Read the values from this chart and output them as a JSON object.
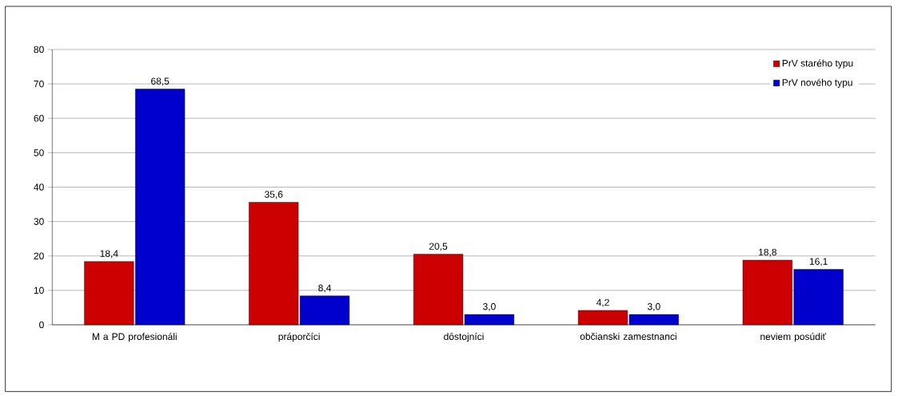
{
  "chart_data": {
    "type": "bar",
    "categories": [
      "M a PD profesionáli",
      "práporčíci",
      "dôstojníci",
      "občianski zamestnanci",
      "neviem posúdiť"
    ],
    "series": [
      {
        "name": "PrV starého typu",
        "color": "#cc0000",
        "values": [
          18.4,
          35.6,
          20.5,
          4.2,
          18.8
        ],
        "value_labels": [
          "18,4",
          "35,6",
          "20,5",
          "4,2",
          "18,8"
        ]
      },
      {
        "name": "PrV nového typu",
        "color": "#0000cc",
        "values": [
          68.5,
          8.4,
          3.0,
          3.0,
          16.1
        ],
        "value_labels": [
          "68,5",
          "8,4",
          "3,0",
          "3,0",
          "16,1"
        ]
      }
    ],
    "ylim": [
      0,
      80
    ],
    "yticks": [
      0,
      10,
      20,
      30,
      40,
      50,
      60,
      70,
      80
    ],
    "grid": "y",
    "legend": "top right"
  }
}
